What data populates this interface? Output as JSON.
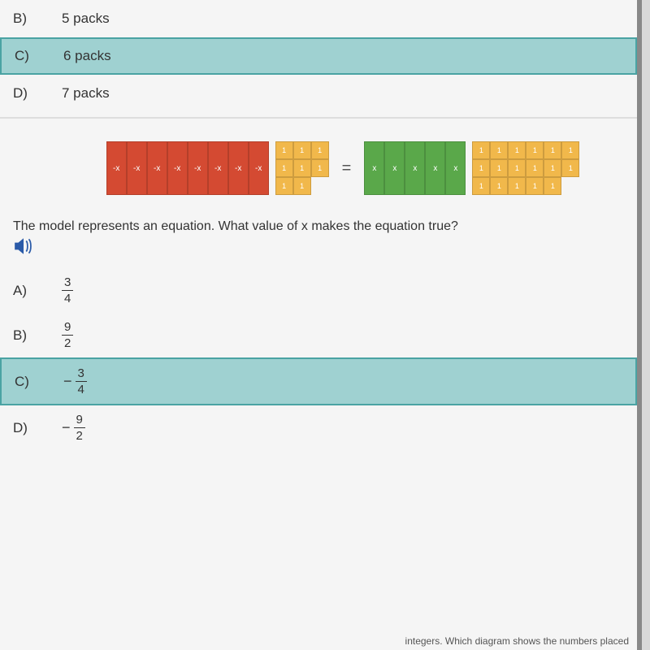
{
  "q1": {
    "options": [
      {
        "letter": "B)",
        "text": "5 packs",
        "selected": false
      },
      {
        "letter": "C)",
        "text": "6 packs",
        "selected": true
      },
      {
        "letter": "D)",
        "text": "7 packs",
        "selected": false
      }
    ]
  },
  "model": {
    "left": {
      "vertical_tiles": {
        "count": 8,
        "label": "-x",
        "color": "#d44a32"
      },
      "unit_tiles": {
        "count": 8,
        "label": "1",
        "color": "#f1b84b",
        "rows": 3
      }
    },
    "equals": "=",
    "right": {
      "vertical_tiles": {
        "count": 5,
        "label": "x",
        "color": "#5aa84a"
      },
      "unit_tiles": {
        "count": 17,
        "label": "1",
        "color": "#f1b84b",
        "rows": 3
      }
    }
  },
  "q2": {
    "prompt": "The model represents an equation. What value of x makes the equation true?",
    "options": [
      {
        "letter": "A)",
        "num": "3",
        "den": "4",
        "neg": false,
        "selected": false
      },
      {
        "letter": "B)",
        "num": "9",
        "den": "2",
        "neg": false,
        "selected": false
      },
      {
        "letter": "C)",
        "num": "3",
        "den": "4",
        "neg": true,
        "selected": true
      },
      {
        "letter": "D)",
        "num": "9",
        "den": "2",
        "neg": true,
        "selected": false
      }
    ]
  },
  "footer_fragment": "integers. Which diagram shows the numbers placed"
}
